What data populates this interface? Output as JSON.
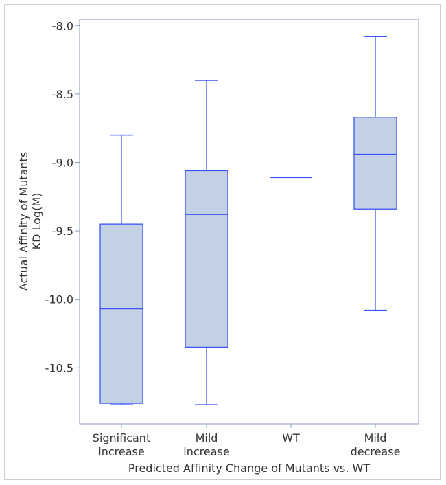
{
  "chart_data": {
    "type": "box",
    "xlabel": "Predicted Affinity Change of Mutants vs. WT",
    "ylabel": [
      "Actual Affinity of Mutants",
      "KD Log(M)"
    ],
    "categories": [
      [
        "Significant",
        "increase"
      ],
      [
        "Mild",
        "increase"
      ],
      [
        "WT"
      ],
      [
        "Mild",
        "decrease"
      ]
    ],
    "boxes": [
      {
        "min": -10.77,
        "q1": -10.76,
        "median": -10.07,
        "q3": -9.45,
        "max": -8.8
      },
      {
        "min": -10.77,
        "q1": -10.35,
        "median": -9.38,
        "q3": -9.06,
        "max": -8.4
      },
      {
        "min": -9.11,
        "q1": -9.11,
        "median": -9.11,
        "q3": -9.11,
        "max": -9.11
      },
      {
        "min": -10.08,
        "q1": -9.34,
        "median": -8.94,
        "q3": -8.67,
        "max": -8.08
      }
    ],
    "yticks": [
      "-8.0",
      "-8.5",
      "-9.0",
      "-9.5",
      "-10.0",
      "-10.5"
    ],
    "ytick_values": [
      -8.0,
      -8.5,
      -9.0,
      -9.5,
      -10.0,
      -10.5
    ],
    "ylim": [
      -10.91,
      -7.95
    ],
    "grid": false,
    "colors": {
      "box_fill": "#c4d0e3",
      "box_stroke": "#3a55ff",
      "axis": "#8a9bbd"
    }
  }
}
